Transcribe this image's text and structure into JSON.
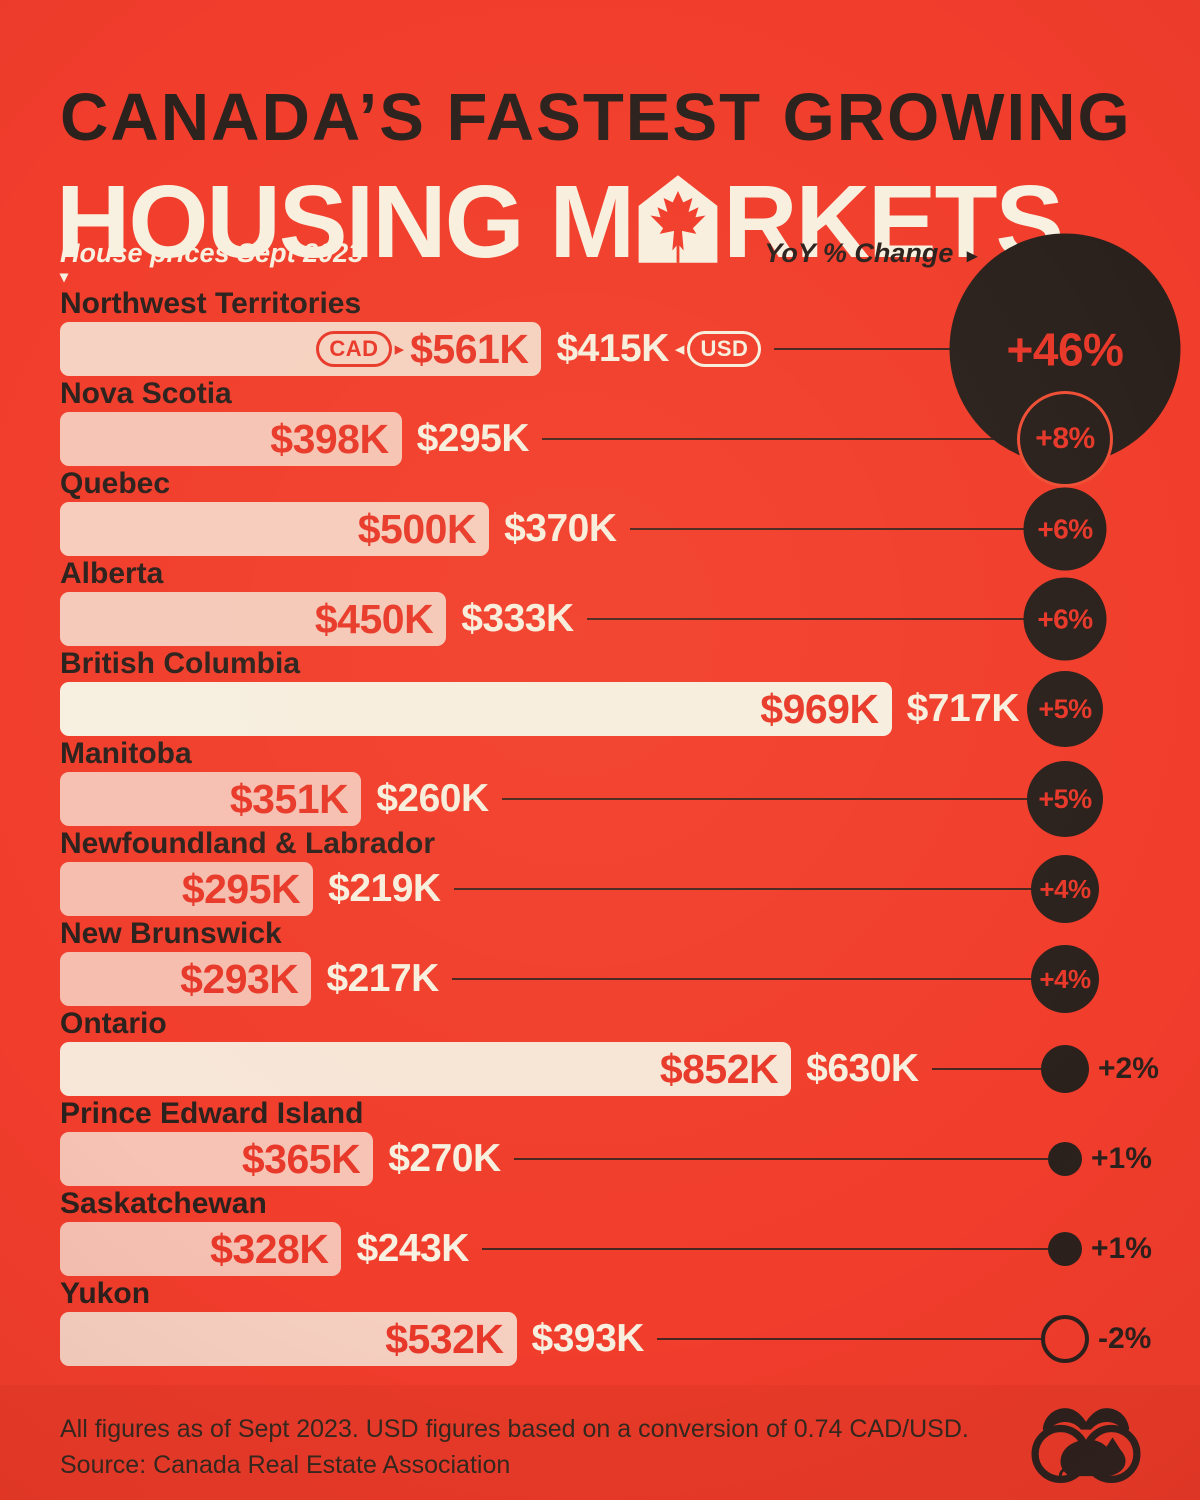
{
  "palette": {
    "background": "#f13d2c",
    "dark": "#2a211e",
    "cream": "#f7f0e2",
    "accent_red": "#ea3a28"
  },
  "header": {
    "title_line1": "CANADA’S FASTEST GROWING",
    "title_line2_pre": "HOUSING M",
    "title_line2_post": "RKETS",
    "left_subtitle": "House prices Sept 2023",
    "left_subtitle_marker": "▾",
    "right_subtitle": "YoY % Change",
    "right_subtitle_arrow": "▸"
  },
  "chart_data": {
    "type": "bar",
    "title": "Canada's Fastest Growing Housing Markets",
    "value_unit": "CAD (thousands)",
    "secondary_unit": "USD (thousands)",
    "max_cad_value": 969,
    "circle_scale": "sqrt of |yoy_pct|",
    "legend": {
      "bar": "House price Sept 2023",
      "circle": "YoY % Change"
    },
    "rows": [
      {
        "province": "Northwest Territories",
        "cad": "$561K",
        "usd": "$415K",
        "cad_value": 561,
        "usd_value": 415,
        "yoy_pct": 46,
        "yoy_label": "+46%",
        "cad_badge": "CAD",
        "usd_badge": "USD",
        "cad_arrow": "▸",
        "usd_arrow": "◂"
      },
      {
        "province": "Nova Scotia",
        "cad": "$398K",
        "usd": "$295K",
        "cad_value": 398,
        "usd_value": 295,
        "yoy_pct": 8,
        "yoy_label": "+8%",
        "ring": true
      },
      {
        "province": "Quebec",
        "cad": "$500K",
        "usd": "$370K",
        "cad_value": 500,
        "usd_value": 370,
        "yoy_pct": 6,
        "yoy_label": "+6%"
      },
      {
        "province": "Alberta",
        "cad": "$450K",
        "usd": "$333K",
        "cad_value": 450,
        "usd_value": 333,
        "yoy_pct": 6,
        "yoy_label": "+6%"
      },
      {
        "province": "British Columbia",
        "cad": "$969K",
        "usd": "$717K",
        "cad_value": 969,
        "usd_value": 717,
        "yoy_pct": 5,
        "yoy_label": "+5%"
      },
      {
        "province": "Manitoba",
        "cad": "$351K",
        "usd": "$260K",
        "cad_value": 351,
        "usd_value": 260,
        "yoy_pct": 5,
        "yoy_label": "+5%"
      },
      {
        "province": "Newfoundland & Labrador",
        "cad": "$295K",
        "usd": "$219K",
        "cad_value": 295,
        "usd_value": 219,
        "yoy_pct": 4,
        "yoy_label": "+4%"
      },
      {
        "province": "New Brunswick",
        "cad": "$293K",
        "usd": "$217K",
        "cad_value": 293,
        "usd_value": 217,
        "yoy_pct": 4,
        "yoy_label": "+4%"
      },
      {
        "province": "Ontario",
        "cad": "$852K",
        "usd": "$630K",
        "cad_value": 852,
        "usd_value": 630,
        "yoy_pct": 2,
        "yoy_label": "+2%"
      },
      {
        "province": "Prince Edward Island",
        "cad": "$365K",
        "usd": "$270K",
        "cad_value": 365,
        "usd_value": 270,
        "yoy_pct": 1,
        "yoy_label": "+1%"
      },
      {
        "province": "Saskatchewan",
        "cad": "$328K",
        "usd": "$243K",
        "cad_value": 328,
        "usd_value": 243,
        "yoy_pct": 1,
        "yoy_label": "+1%"
      },
      {
        "province": "Yukon",
        "cad": "$532K",
        "usd": "$393K",
        "cad_value": 532,
        "usd_value": 393,
        "yoy_pct": -2,
        "yoy_label": "-2%"
      }
    ]
  },
  "footer": {
    "note_line1": "All figures as of Sept 2023. USD figures based on a conversion of 0.74 CAD/USD.",
    "note_line2": "Source: Canada Real Estate Association"
  }
}
